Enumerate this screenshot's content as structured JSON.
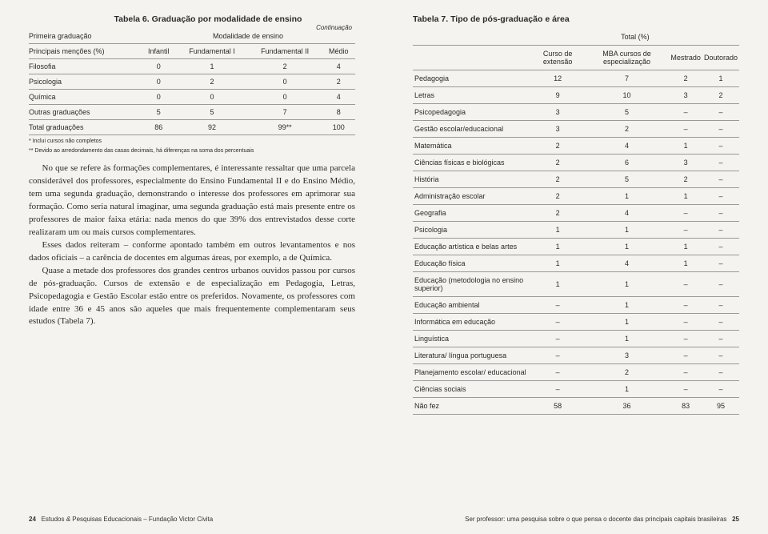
{
  "leftPage": {
    "table6": {
      "title": "Tabela 6. Graduação por modalidade de ensino",
      "continuation": "Continuação",
      "megaHeader": "Modalidade de ensino",
      "firstColHeader": "Primeira graduação",
      "rowHeader": "Principais menções (%)",
      "cols": [
        "Infantil",
        "Fundamental I",
        "Fundamental II",
        "Médio"
      ],
      "rows": [
        {
          "label": "Filosofia",
          "vals": [
            "0",
            "1",
            "2",
            "4"
          ]
        },
        {
          "label": "Psicologia",
          "vals": [
            "0",
            "2",
            "0",
            "2"
          ]
        },
        {
          "label": "Química",
          "vals": [
            "0",
            "0",
            "0",
            "4"
          ]
        },
        {
          "label": "Outras graduações",
          "vals": [
            "5",
            "5",
            "7",
            "8"
          ]
        },
        {
          "label": "Total graduações",
          "vals": [
            "86",
            "92",
            "99**",
            "100"
          ]
        }
      ],
      "footnotes": [
        "* Inclui cursos não completos",
        "** Devido ao arredondamento das casas decimais, há diferenças na soma dos percentuais"
      ]
    },
    "paragraphs": [
      "No que se refere às formações complementares, é interessante ressaltar que uma parcela considerável dos professores, especialmente do Ensino Fundamental II e do Ensino Médio, tem uma segunda graduação, demonstrando o interesse dos professores em aprimorar sua formação. Como seria natural imaginar, uma segunda graduação está mais presente entre os professores de maior faixa etária: nada menos do que 39% dos entrevistados desse corte realizaram um ou mais cursos complementares.",
      "Esses dados reiteram – conforme apontado também em outros levantamentos e nos dados oficiais – a carência de docentes em algumas áreas, por exemplo, a de Química.",
      "Quase a metade dos professores dos grandes centros urbanos ouvidos passou por cursos de pós-graduação. Cursos de extensão e de especialização em Pedagogia, Letras, Psicopedagogia e Gestão Escolar estão entre os preferidos. Novamente, os professores com idade entre 36 e 45 anos são aqueles que mais frequentemente complementaram seus estudos (Tabela 7)."
    ],
    "footer": {
      "pageNum": "24",
      "text": "Estudos & Pesquisas Educacionais – Fundação Victor Civita"
    }
  },
  "rightPage": {
    "table7": {
      "title": "Tabela 7. Tipo de pós-graduação e área",
      "megaHeader": "Total (%)",
      "cols": [
        "Curso de extensão",
        "MBA cursos de especialização",
        "Mestrado",
        "Doutorado"
      ],
      "rows": [
        {
          "label": "Pedagogia",
          "vals": [
            "12",
            "7",
            "2",
            "1"
          ]
        },
        {
          "label": "Letras",
          "vals": [
            "9",
            "10",
            "3",
            "2"
          ]
        },
        {
          "label": "Psicopedagogia",
          "vals": [
            "3",
            "5",
            "–",
            "–"
          ]
        },
        {
          "label": "Gestão escolar/educacional",
          "vals": [
            "3",
            "2",
            "–",
            "–"
          ]
        },
        {
          "label": "Matemática",
          "vals": [
            "2",
            "4",
            "1",
            "–"
          ]
        },
        {
          "label": "Ciências físicas e biológicas",
          "vals": [
            "2",
            "6",
            "3",
            "–"
          ]
        },
        {
          "label": "História",
          "vals": [
            "2",
            "5",
            "2",
            "–"
          ]
        },
        {
          "label": "Administração escolar",
          "vals": [
            "2",
            "1",
            "1",
            "–"
          ]
        },
        {
          "label": "Geografia",
          "vals": [
            "2",
            "4",
            "–",
            "–"
          ]
        },
        {
          "label": "Psicologia",
          "vals": [
            "1",
            "1",
            "–",
            "–"
          ]
        },
        {
          "label": "Educação artística e belas artes",
          "vals": [
            "1",
            "1",
            "1",
            "–"
          ]
        },
        {
          "label": "Educação física",
          "vals": [
            "1",
            "4",
            "1",
            "–"
          ]
        },
        {
          "label": "Educação (metodologia no ensino superior)",
          "vals": [
            "1",
            "1",
            "–",
            "–"
          ]
        },
        {
          "label": "Educação ambiental",
          "vals": [
            "–",
            "1",
            "–",
            "–"
          ]
        },
        {
          "label": "Informática em educação",
          "vals": [
            "–",
            "1",
            "–",
            "–"
          ]
        },
        {
          "label": "Linguística",
          "vals": [
            "–",
            "1",
            "–",
            "–"
          ]
        },
        {
          "label": "Literatura/ língua portuguesa",
          "vals": [
            "–",
            "3",
            "–",
            "–"
          ]
        },
        {
          "label": "Planejamento escolar/ educacional",
          "vals": [
            "–",
            "2",
            "–",
            "–"
          ]
        },
        {
          "label": "Ciências sociais",
          "vals": [
            "–",
            "1",
            "–",
            "–"
          ]
        },
        {
          "label": "Não fez",
          "vals": [
            "58",
            "36",
            "83",
            "95"
          ]
        }
      ]
    },
    "footer": {
      "text": "Ser professor: uma pesquisa sobre o que pensa o docente das principais capitais brasileiras",
      "pageNum": "25"
    }
  }
}
